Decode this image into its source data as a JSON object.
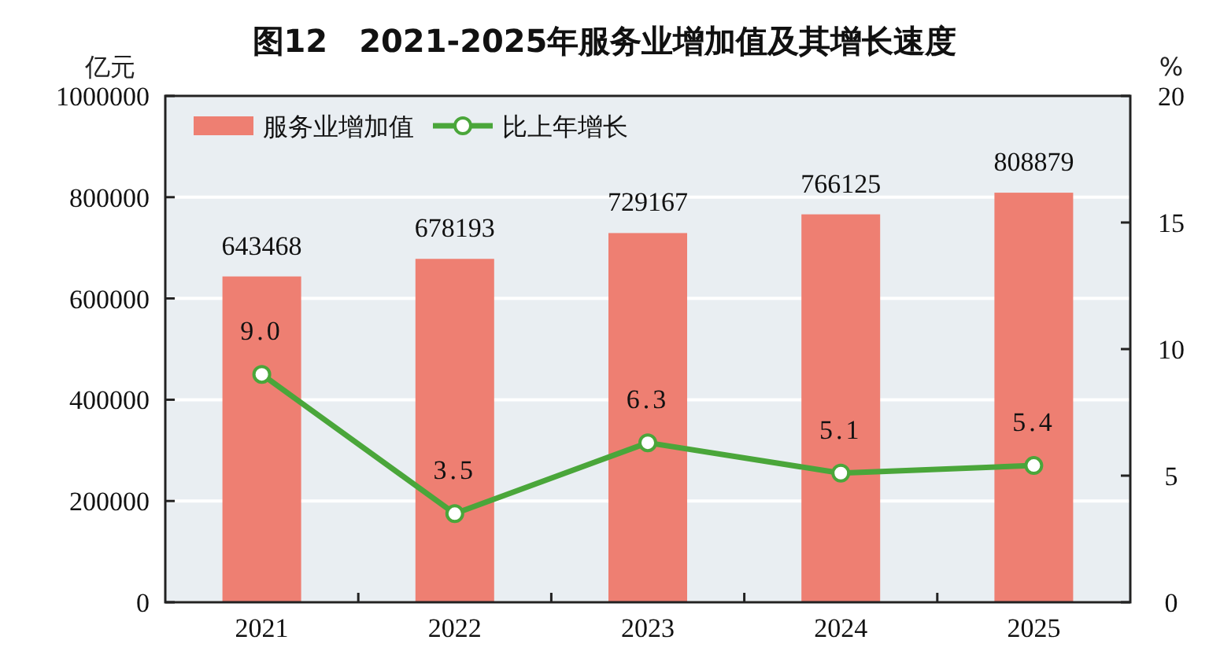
{
  "chart_data": {
    "type": "bar",
    "title": "图12　2021-2025年服务业增加值及其增长速度",
    "ylabel": "亿元",
    "y2label": "%",
    "categories": [
      "2021",
      "2022",
      "2023",
      "2024",
      "2025"
    ],
    "series": [
      {
        "name": "服务业增加值",
        "color": "#ee7f72",
        "values": [
          643468,
          678193,
          729167,
          766125,
          808879
        ],
        "value_labels": [
          "643468",
          "678193",
          "729167",
          "766125",
          "808879"
        ]
      },
      {
        "name": "比上年增长",
        "type": "line",
        "axis": "y2",
        "color": "#4aa63a",
        "values": [
          9.0,
          3.5,
          6.3,
          5.1,
          5.4
        ],
        "value_labels": [
          "9.0",
          "3.5",
          "6.3",
          "5.1",
          "5.4"
        ]
      }
    ],
    "ylim": [
      0,
      1000000
    ],
    "yticks": [
      0,
      200000,
      400000,
      600000,
      800000,
      1000000
    ],
    "y2lim": [
      0,
      20
    ],
    "y2ticks": [
      0,
      5,
      10,
      15,
      20
    ],
    "grid": "y",
    "legend": "top left",
    "marker": "circle"
  }
}
